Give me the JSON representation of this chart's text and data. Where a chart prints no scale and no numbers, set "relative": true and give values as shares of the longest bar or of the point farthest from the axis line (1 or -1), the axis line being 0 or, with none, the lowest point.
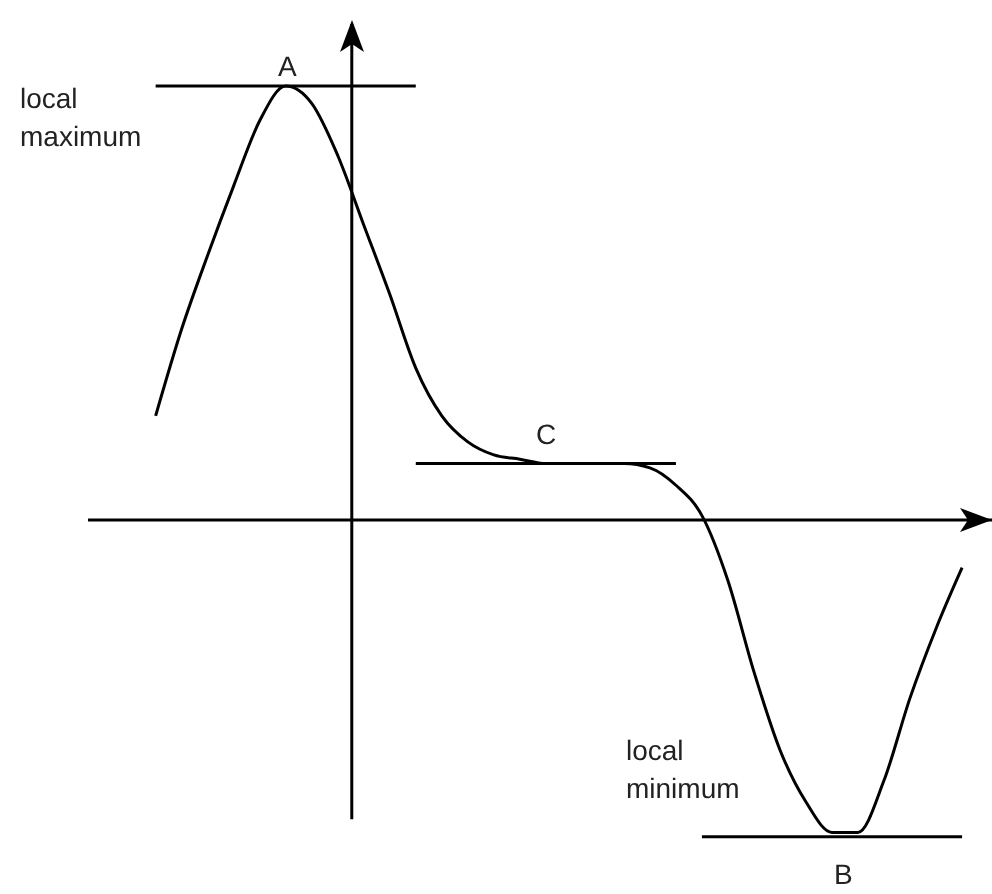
{
  "chart_data": {
    "type": "line",
    "relative": true,
    "marker": "none",
    "line_style": "solid",
    "tick_labels": false,
    "categories": [
      null,
      null,
      null,
      null,
      null,
      null,
      null,
      null,
      null,
      null,
      null,
      null,
      null,
      null,
      null,
      null,
      null,
      null,
      null,
      null,
      null,
      null,
      null,
      null,
      null,
      null,
      null,
      null,
      null,
      null,
      null,
      null,
      null
    ],
    "series": [
      {
        "color": "#000000",
        "values": [
          0.24,
          0.44,
          0.61,
          0.77,
          0.92,
          1.0,
          0.96,
          0.84,
          0.68,
          0.52,
          0.35,
          0.24,
          0.18,
          0.15,
          0.14,
          0.13,
          0.13,
          0.13,
          0.13,
          0.12,
          0.08,
          0.01,
          -0.14,
          -0.35,
          -0.53,
          -0.65,
          -0.72,
          -0.72,
          -0.6,
          -0.41,
          -0.25,
          -0.11,
          null
        ]
      },
      {
        "color": "#000000",
        "values": [
          1.0,
          1.0,
          1.0,
          1.0,
          1.0,
          1.0,
          1.0,
          1.0,
          1.0,
          1.0,
          1.0,
          null,
          null,
          null,
          null,
          null,
          null,
          null,
          null,
          null,
          null,
          null,
          null,
          null,
          null,
          null,
          null,
          null,
          null,
          null,
          null,
          null,
          null
        ]
      },
      {
        "color": "#000000",
        "values": [
          null,
          null,
          null,
          null,
          null,
          null,
          null,
          null,
          null,
          null,
          0.13,
          0.13,
          0.13,
          0.13,
          0.13,
          0.13,
          0.13,
          0.13,
          0.13,
          0.13,
          0.13,
          null,
          null,
          null,
          null,
          null,
          null,
          null,
          null,
          null,
          null,
          null,
          null
        ]
      },
      {
        "color": "#000000",
        "values": [
          null,
          null,
          null,
          null,
          null,
          null,
          null,
          null,
          null,
          null,
          null,
          null,
          null,
          null,
          null,
          null,
          null,
          null,
          null,
          null,
          null,
          -0.73,
          -0.73,
          -0.73,
          -0.73,
          -0.73,
          -0.73,
          -0.73,
          -0.73,
          -0.73,
          -0.73,
          -0.73,
          null
        ]
      }
    ],
    "annotations": [
      "A",
      "local\nmaximum",
      "C",
      "local\nminimum",
      "B"
    ]
  }
}
